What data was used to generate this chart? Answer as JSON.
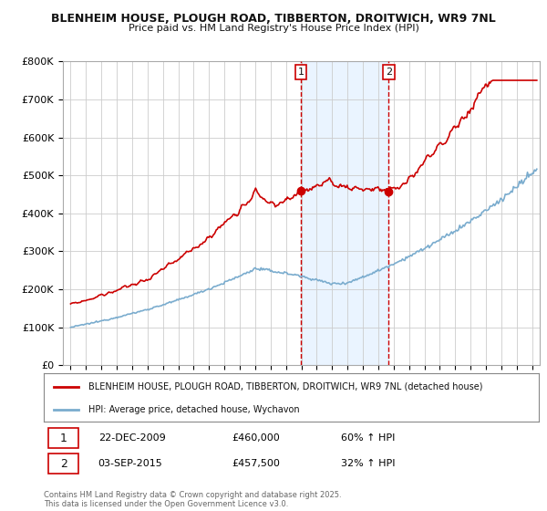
{
  "title1": "BLENHEIM HOUSE, PLOUGH ROAD, TIBBERTON, DROITWICH, WR9 7NL",
  "title2": "Price paid vs. HM Land Registry's House Price Index (HPI)",
  "background_color": "#ffffff",
  "plot_bg_color": "#ffffff",
  "grid_color": "#cccccc",
  "sale1_date_num": 2009.97,
  "sale1_price": 460000,
  "sale2_date_num": 2015.67,
  "sale2_price": 457500,
  "legend_line1": "BLENHEIM HOUSE, PLOUGH ROAD, TIBBERTON, DROITWICH, WR9 7NL (detached house)",
  "legend_line2": "HPI: Average price, detached house, Wychavon",
  "table_row1": [
    "1",
    "22-DEC-2009",
    "£460,000",
    "60% ↑ HPI"
  ],
  "table_row2": [
    "2",
    "03-SEP-2015",
    "£457,500",
    "32% ↑ HPI"
  ],
  "footnote": "Contains HM Land Registry data © Crown copyright and database right 2025.\nThis data is licensed under the Open Government Licence v3.0.",
  "red_color": "#cc0000",
  "blue_color": "#7aacce",
  "vline_color": "#cc0000",
  "vline2_color": "#cc0000",
  "vspan_color": "#ddeeff",
  "ylim_max": 800000,
  "ylim_min": 0,
  "xmin": 1994.5,
  "xmax": 2025.5,
  "yticks": [
    0,
    100000,
    200000,
    300000,
    400000,
    500000,
    600000,
    700000,
    800000
  ]
}
